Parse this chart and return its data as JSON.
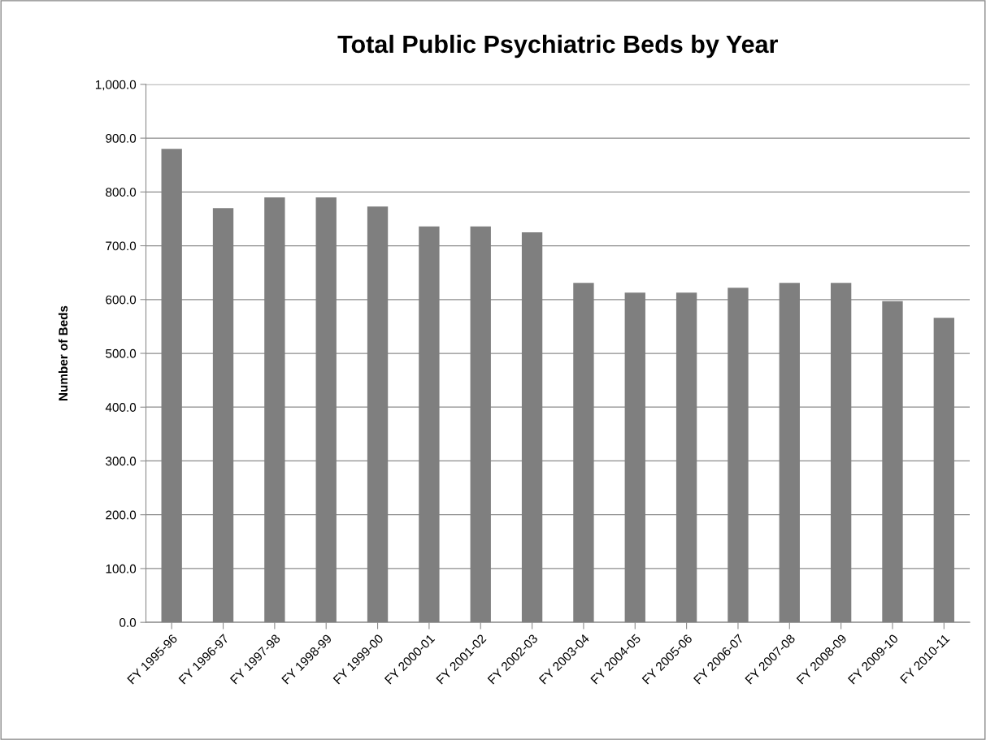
{
  "chart_data": {
    "type": "bar",
    "title": "Total Public Psychiatric Beds by Year",
    "ylabel": "Number of Beds",
    "categories": [
      "FY 1995-96",
      "FY 1996-97",
      "FY 1997-98",
      "FY 1998-99",
      "FY 1999-00",
      "FY 2000-01",
      "FY 2001-02",
      "FY 2002-03",
      "FY 2003-04",
      "FY 2004-05",
      "FY 2005-06",
      "FY 2006-07",
      "FY 2007-08",
      "FY 2008-09",
      "FY 2009-10",
      "FY 2010-11"
    ],
    "values": [
      880,
      770,
      790,
      790,
      773,
      736,
      736,
      725,
      631,
      613,
      613,
      622,
      631,
      631,
      597,
      566
    ],
    "color": "#7f7f7f",
    "ylim": [
      0,
      1000
    ],
    "yticks": [
      {
        "value": 0,
        "label": "0.0"
      },
      {
        "value": 100,
        "label": "100.0"
      },
      {
        "value": 200,
        "label": "200.0"
      },
      {
        "value": 300,
        "label": "300.0"
      },
      {
        "value": 400,
        "label": "400.0"
      },
      {
        "value": 500,
        "label": "500.0"
      },
      {
        "value": 600,
        "label": "600.0"
      },
      {
        "value": 700,
        "label": "700.0"
      },
      {
        "value": 800,
        "label": "800.0"
      },
      {
        "value": 900,
        "label": "900.0"
      },
      {
        "value": 1000,
        "label": "1,000.0"
      }
    ],
    "grid": "y",
    "legend": false
  }
}
